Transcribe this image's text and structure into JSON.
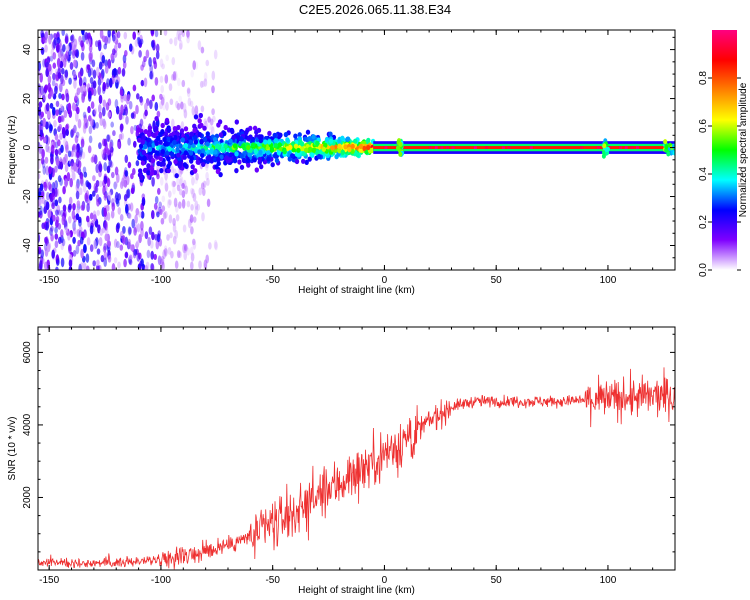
{
  "title": "C2E5.2026.065.11.38.E34",
  "chart_data": [
    {
      "type": "heatmap",
      "name": "spectrogram",
      "xlabel": "Height of straight line (km)",
      "ylabel": "Frequency (Hz)",
      "xlim": [
        -155,
        130
      ],
      "ylim": [
        -50,
        48
      ],
      "xticks": [
        -150,
        -100,
        -50,
        0,
        50,
        100
      ],
      "yticks": [
        -40,
        -20,
        0,
        20,
        40
      ],
      "xtick_labels": [
        "-150",
        "-100",
        "-50",
        "0",
        "50",
        "100"
      ],
      "ytick_labels": [
        "-40",
        "-20",
        "0",
        "20",
        "40"
      ],
      "colorbar": {
        "label": "Normalized spectral amplitude",
        "range": [
          0,
          1
        ],
        "ticks": [
          0,
          0.2,
          0.4,
          0.6,
          0.8
        ],
        "tick_labels": [
          "0.0",
          "0.2",
          "0.4",
          "0.6",
          "0.8"
        ],
        "colors": [
          "#ffffff",
          "#7f00ff",
          "#0000ff",
          "#00ffff",
          "#00ff00",
          "#ffff00",
          "#ff8000",
          "#ff0000",
          "#ff0080"
        ]
      },
      "features": {
        "noise_region_x": [
          -155,
          -75
        ],
        "main_band_frequency_hz": 0,
        "strong_line_x": [
          -5,
          130
        ]
      }
    },
    {
      "type": "line",
      "name": "snr",
      "xlabel": "Height of straight line (km)",
      "ylabel": "SNR (10 * v/v)",
      "xlim": [
        -155,
        130
      ],
      "ylim": [
        0,
        6700
      ],
      "xticks": [
        -150,
        -100,
        -50,
        0,
        50,
        100
      ],
      "yticks": [
        2000,
        4000,
        6000
      ],
      "xtick_labels": [
        "-150",
        "-100",
        "-50",
        "0",
        "50",
        "100"
      ],
      "ytick_labels": [
        "2000",
        "4000",
        "6000"
      ],
      "color": "#ee3030",
      "trend": {
        "x": [
          -155,
          -120,
          -100,
          -80,
          -60,
          -40,
          -20,
          -10,
          0,
          10,
          20,
          30,
          40,
          60,
          80,
          100,
          110,
          130
        ],
        "y": [
          200,
          200,
          300,
          500,
          900,
          1600,
          2400,
          2800,
          3200,
          3600,
          4100,
          4500,
          4650,
          4650,
          4650,
          4700,
          4750,
          4800
        ]
      }
    }
  ]
}
